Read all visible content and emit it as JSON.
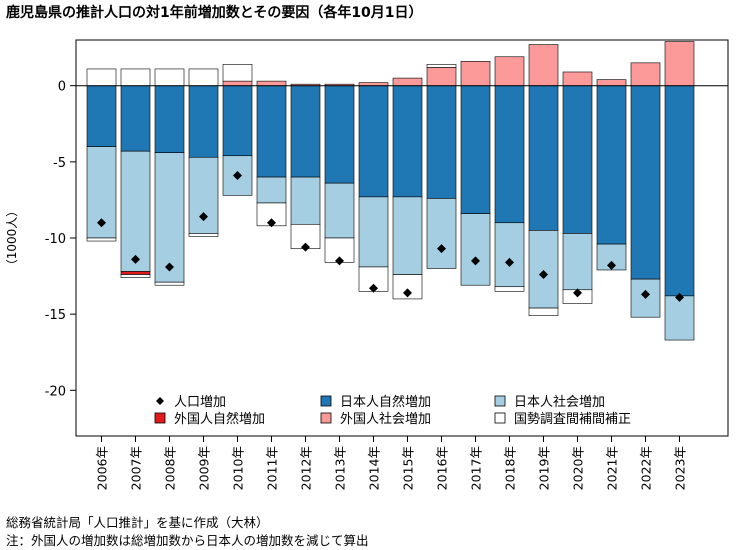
{
  "chart_data": {
    "type": "bar",
    "stacked": true,
    "title": "鹿児島県の推計人口の対1年前増加数とその要因（各年10月1日）",
    "ylabel": "（1000人）",
    "xlabel": "",
    "ylim": [
      -23,
      3
    ],
    "yticks": [
      0,
      -5,
      -10,
      -15,
      -20
    ],
    "ytick_labels": [
      "0",
      "-5",
      "-10",
      "-15",
      "-20"
    ],
    "zero_line": true,
    "grid": false,
    "legend_position": "bottom-inside",
    "categories": [
      "2006年",
      "2007年",
      "2008年",
      "2009年",
      "2010年",
      "2011年",
      "2012年",
      "2013年",
      "2014年",
      "2015年",
      "2016年",
      "2017年",
      "2018年",
      "2019年",
      "2020年",
      "2021年",
      "2022年",
      "2023年"
    ],
    "series": [
      {
        "name": "人口増加",
        "kind": "marker",
        "color": "#000000",
        "values": [
          -9.0,
          -11.4,
          -11.9,
          -8.6,
          -5.9,
          -9.0,
          -10.6,
          -11.5,
          -13.3,
          -13.6,
          -10.7,
          -11.5,
          -11.6,
          -12.4,
          -13.6,
          -11.8,
          -13.7,
          -13.9
        ]
      },
      {
        "name": "日本人自然増加",
        "kind": "bar",
        "color": "#1f77b4",
        "values": [
          -4.0,
          -4.3,
          -4.4,
          -4.7,
          -4.6,
          -6.0,
          -6.0,
          -6.4,
          -7.3,
          -7.3,
          -7.4,
          -8.4,
          -9.0,
          -9.5,
          -9.7,
          -10.4,
          -12.7,
          -13.8
        ]
      },
      {
        "name": "日本人社会増加",
        "kind": "bar",
        "color": "#a6cee3",
        "values": [
          -6.0,
          -7.9,
          -8.5,
          -5.0,
          -2.6,
          -1.7,
          -3.1,
          -3.6,
          -4.6,
          -5.1,
          -4.6,
          -4.7,
          -4.2,
          -5.1,
          -3.7,
          -1.7,
          -2.5,
          -2.9
        ]
      },
      {
        "name": "外国人自然増加",
        "kind": "bar",
        "color": "#e31a1c",
        "values": [
          0,
          -0.2,
          0,
          0,
          0,
          0,
          0,
          0,
          0,
          0,
          0,
          0,
          0,
          0,
          0,
          0,
          0,
          0
        ]
      },
      {
        "name": "外国人社会増加",
        "kind": "bar",
        "color": "#fb9a99",
        "values": [
          0,
          0,
          0,
          0,
          0.3,
          0.3,
          0.1,
          0.1,
          0.2,
          0.5,
          1.2,
          1.6,
          1.9,
          2.7,
          0.9,
          0.4,
          1.5,
          2.9
        ]
      },
      {
        "name": "国勢調査間補間補正",
        "kind": "bar",
        "color": "#ffffff",
        "values": [
          1.1,
          1.1,
          1.1,
          1.1,
          1.1,
          0,
          0,
          0,
          0,
          0,
          0.2,
          0,
          0,
          0,
          0,
          0,
          0,
          0
        ],
        "neg_values": [
          -0.2,
          -0.2,
          -0.2,
          -0.2,
          0,
          -1.5,
          -1.6,
          -1.6,
          -1.6,
          -1.6,
          0,
          0,
          -0.3,
          -0.5,
          -0.9,
          0,
          0,
          0
        ]
      }
    ],
    "legend": [
      {
        "label": "人口増加",
        "symbol": "diamond",
        "color": "#000000"
      },
      {
        "label": "日本人自然増加",
        "symbol": "square",
        "color": "#1f77b4"
      },
      {
        "label": "日本人社会増加",
        "symbol": "square",
        "color": "#a6cee3"
      },
      {
        "label": "外国人自然増加",
        "symbol": "square",
        "color": "#e31a1c"
      },
      {
        "label": "外国人社会増加",
        "symbol": "square",
        "color": "#fb9a99"
      },
      {
        "label": "国勢調査間補間補正",
        "symbol": "square",
        "color": "#ffffff"
      }
    ]
  },
  "notes": {
    "source": "総務省統計局「人口推計」を基に作成（大林）",
    "footnote": "注：外国人の増加数は総増加数から日本人の増加数を減じて算出"
  }
}
